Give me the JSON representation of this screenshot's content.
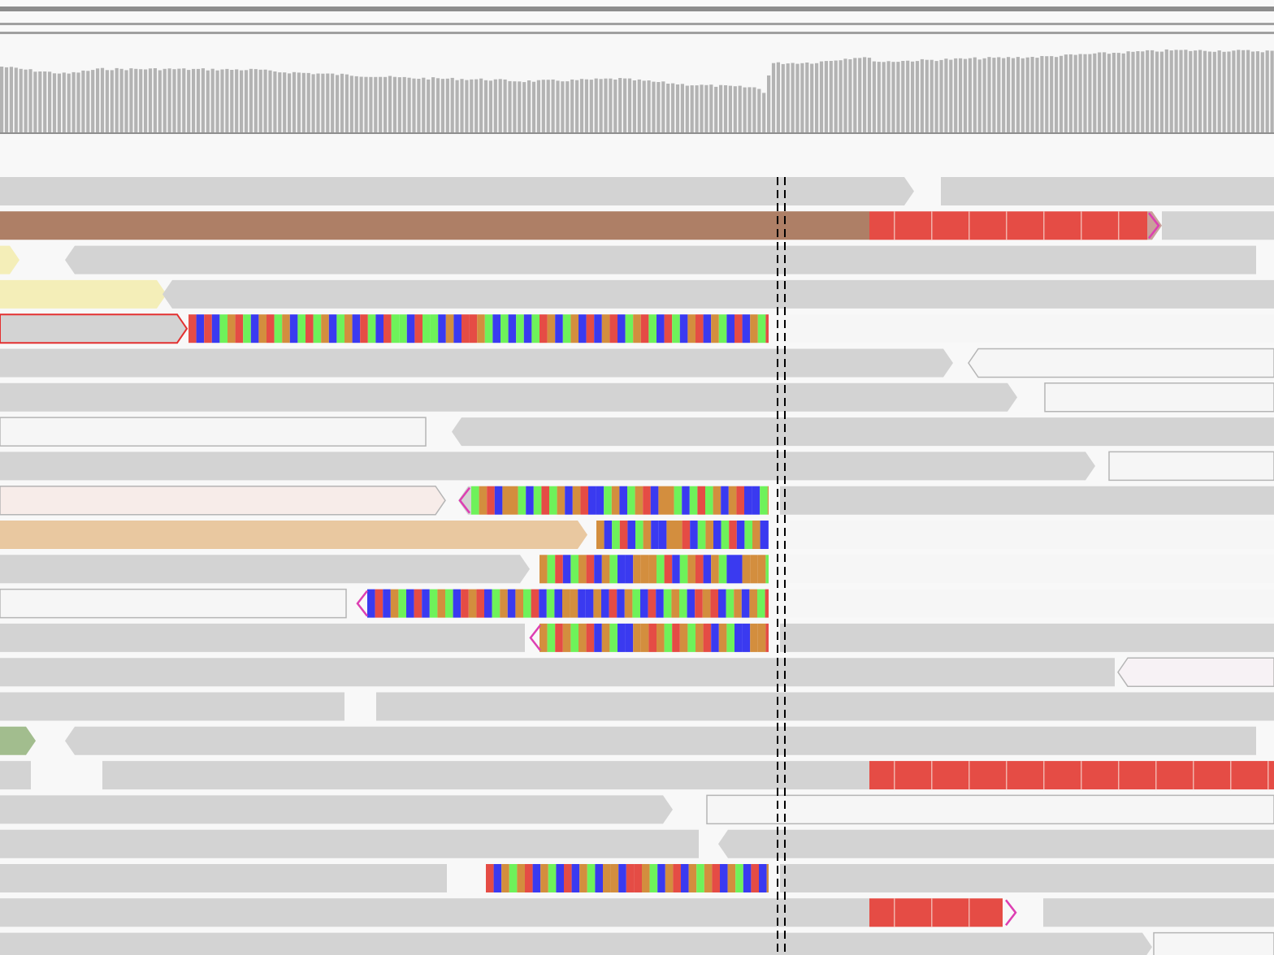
{
  "colors": {
    "background": "#f8f8f8",
    "coverage_bar": "#b3b3b3",
    "coverage_baseline": "#8f8f8f",
    "read_default": "#d3d3d3",
    "read_light": "#f6f6f6",
    "read_light_border": "#b5b5b5",
    "read_brown": "#ae7f66",
    "read_pale_yellow": "#f4eeb8",
    "read_pale_pink": "#f7ece9",
    "read_tan": "#e9c8a0",
    "read_green": "#a2bd8e",
    "read_pale_lilac": "#f7f2f5",
    "selected_outline": "#e33030",
    "insertion_marker": "#dd3fb2",
    "base_A": "#6ef25a",
    "base_C": "#3a3af0",
    "base_G": "#d38e3e",
    "base_T": "#e54c45",
    "center_line": "#000000"
  },
  "icons": {
    "insertion": "insertion-marker-icon",
    "center": "center-line-icon"
  }
}
